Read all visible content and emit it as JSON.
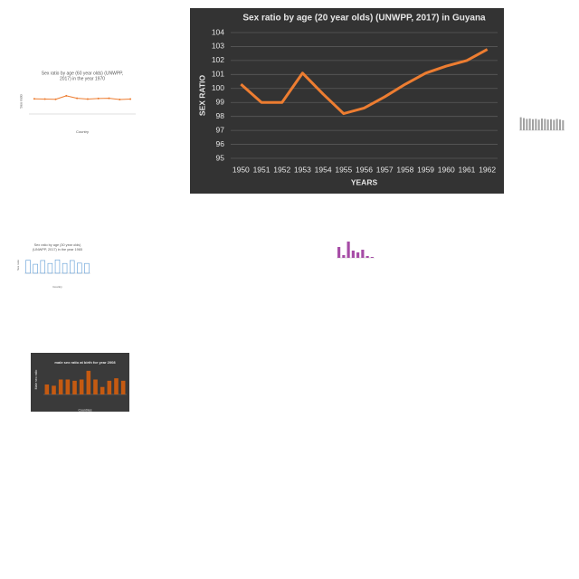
{
  "chart_data": [
    {
      "type": "line",
      "title": "Sex ratio by age (20 year olds) (UNWPP, 2017) in Guyana",
      "x_label": "YEARS",
      "y_label": "SEX RATIO",
      "categories": [
        "1950",
        "1951",
        "1952",
        "1953",
        "1954",
        "1955",
        "1956",
        "1957",
        "1958",
        "1959",
        "1960",
        "1961",
        "1962"
      ],
      "values": [
        100.3,
        99.0,
        99.0,
        101.1,
        99.6,
        98.2,
        98.6,
        99.4,
        100.3,
        101.1,
        101.6,
        102.0,
        102.8
      ],
      "color": "#ed7d31",
      "background": "#333333",
      "ylim": [
        95,
        104
      ],
      "yticks": [
        95,
        96,
        97,
        98,
        99,
        100,
        101,
        102,
        103,
        104
      ],
      "grid": true
    },
    {
      "type": "line",
      "title": [
        "Sex ratio by age (60 year olds) (UNWPP,",
        "2017) in the year 1970"
      ],
      "x_label": "Country",
      "y_label": "Sex ratio",
      "categories": [
        null,
        null,
        null,
        null,
        null,
        null,
        null,
        null,
        null,
        null
      ],
      "values": [
        60,
        59,
        58,
        72,
        62,
        59,
        61,
        62,
        57,
        59
      ],
      "color": "#ed7d31",
      "background": "#ffffff",
      "ylim": [
        0,
        100
      ]
    },
    {
      "type": "bar",
      "title": [
        "Sex ratio by age (30 year olds)",
        "(UNWPP, 2017) in the year 1965"
      ],
      "x_label": "Country",
      "y_label": "Sex ratio",
      "categories": [
        null,
        null,
        null,
        null,
        null,
        null,
        null,
        null,
        null
      ],
      "values": [
        80,
        55,
        78,
        60,
        82,
        60,
        78,
        62,
        60
      ],
      "color": "#5b9bd5",
      "background": "#ffffff",
      "ylim": [
        0,
        100
      ]
    },
    {
      "type": "bar",
      "title": "male sex ratio at birth for year 2008",
      "x_label": "Countries",
      "y_label": "Male sex ratio",
      "categories": [
        null,
        null,
        null,
        null,
        null,
        null,
        null,
        null,
        null,
        null,
        null,
        null
      ],
      "values": [
        104,
        103.5,
        106,
        106,
        105.5,
        106,
        109.5,
        106,
        103,
        105.5,
        106.5,
        105.5
      ],
      "color": "#c55a11",
      "background": "#3a3a3a",
      "ylim": [
        100,
        112
      ]
    },
    {
      "type": "bar",
      "categories": [
        null,
        null,
        null,
        null,
        null,
        null,
        null,
        null
      ],
      "values": [
        60,
        15,
        90,
        40,
        30,
        45,
        10,
        5
      ],
      "color": "#a64ca6",
      "background": "#ffffff",
      "ylim": [
        0,
        100
      ]
    },
    {
      "type": "bar",
      "categories": [
        null,
        null,
        null,
        null,
        null,
        null,
        null,
        null,
        null,
        null,
        null,
        null,
        null,
        null,
        null
      ],
      "values": [
        80,
        75,
        70,
        72,
        68,
        70,
        65,
        72,
        70,
        66,
        68,
        64,
        70,
        66,
        62
      ],
      "color": "#a0a0a0",
      "background": "#ffffff",
      "ylim": [
        0,
        100
      ]
    }
  ]
}
